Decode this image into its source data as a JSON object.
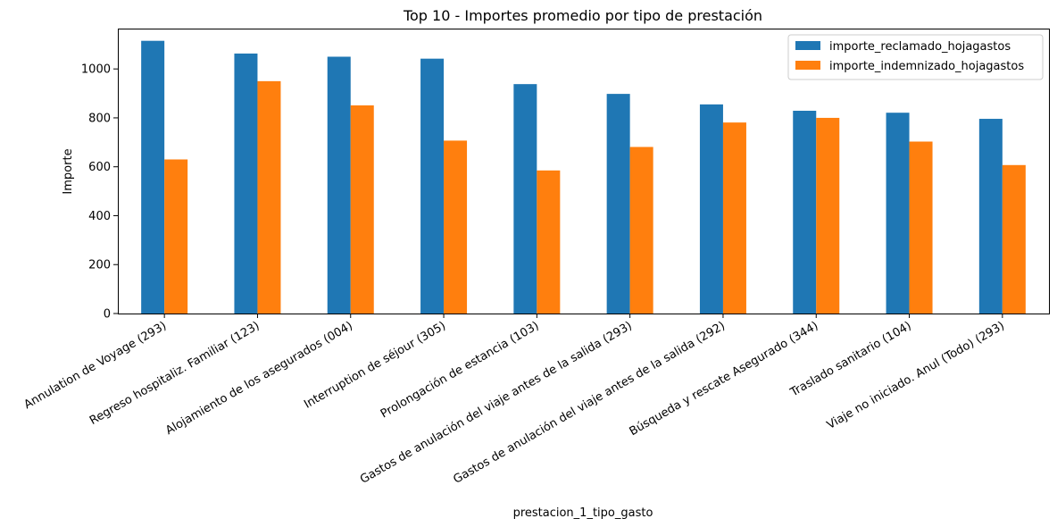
{
  "chart_data": {
    "type": "bar",
    "title": "Top 10 - Importes promedio por tipo de prestación",
    "xlabel": "prestacion_1_tipo_gasto",
    "ylabel": "Importe",
    "ylim": [
      0,
      1165
    ],
    "yticks": [
      0,
      200,
      400,
      600,
      800,
      1000
    ],
    "ytick_labels": [
      "0",
      "200",
      "400",
      "600",
      "800",
      "1000"
    ],
    "grid": false,
    "legend_position": "top-right",
    "categories": [
      "Annulation de Voyage (293)",
      "Regreso hospitaliz. Familiar (123)",
      "Alojamiento de los asegurados (004)",
      "Interruption de séjour (305)",
      "Prolongación de estancia (103)",
      "Gastos de anulación del viaje antes de la salida (293)",
      "Gastos de anulación del viaje antes de la salida (292)",
      "Búsqueda y rescate Asegurado (344)",
      "Traslado sanitario (104)",
      "Viaje no iniciado. Anul (Todo) (293)"
    ],
    "series": [
      {
        "name": "importe_reclamado_hojagastos",
        "color": "#1f77b4",
        "values": [
          1115,
          1063,
          1050,
          1042,
          938,
          898,
          855,
          829,
          821,
          796
        ]
      },
      {
        "name": "importe_indemnizado_hojagastos",
        "color": "#ff7f0e",
        "values": [
          630,
          950,
          851,
          707,
          585,
          681,
          781,
          800,
          703,
          607
        ]
      }
    ]
  }
}
